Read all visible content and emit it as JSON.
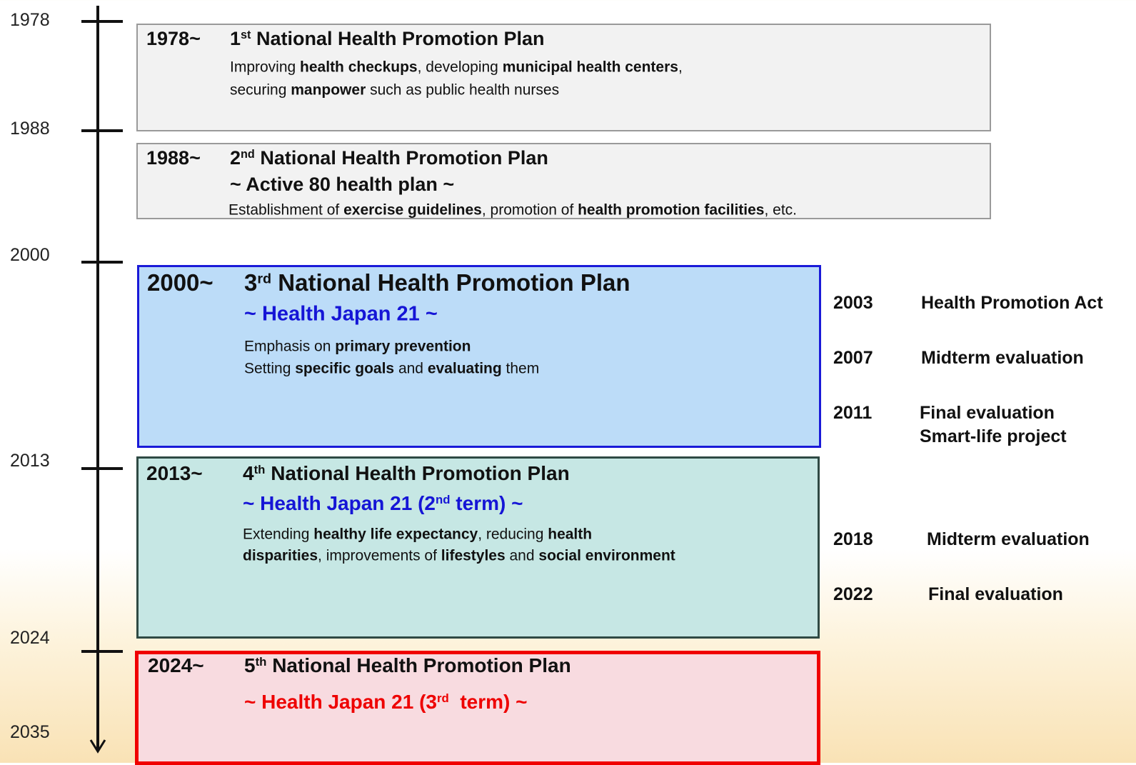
{
  "timeline": {
    "years": [
      "1978",
      "1988",
      "2000",
      "2013",
      "2024",
      "2035"
    ]
  },
  "plans": [
    {
      "start": "1978~",
      "title": [
        {
          "text": "1"
        },
        {
          "text": "st",
          "sup": true
        },
        {
          "text": " National Health Promotion Plan"
        }
      ],
      "description": [
        [
          {
            "text": "Improving "
          },
          {
            "text": "health checkups",
            "bold": true
          },
          {
            "text": ", developing "
          },
          {
            "text": "municipal health centers",
            "bold": true
          },
          {
            "text": ","
          }
        ],
        [
          {
            "text": "securing "
          },
          {
            "text": "manpower",
            "bold": true
          },
          {
            "text": " such as public health nurses"
          }
        ]
      ]
    },
    {
      "start": "1988~",
      "title": [
        {
          "text": "2"
        },
        {
          "text": "nd",
          "sup": true
        },
        {
          "text": " National Health Promotion Plan"
        }
      ],
      "subtitle": [
        {
          "text": "~ Active 80 health plan ~"
        }
      ],
      "description": [
        [
          {
            "text": "Establishment of "
          },
          {
            "text": "exercise guidelines",
            "bold": true
          },
          {
            "text": ", promotion of "
          },
          {
            "text": "health promotion facilities",
            "bold": true
          },
          {
            "text": ", etc."
          }
        ]
      ]
    },
    {
      "start": "2000~",
      "title": [
        {
          "text": "3"
        },
        {
          "text": "rd",
          "sup": true
        },
        {
          "text": " National Health Promotion Plan"
        }
      ],
      "subtitle": [
        {
          "text": "~ Health Japan 21 ~"
        }
      ],
      "description": [
        [
          {
            "text": "Emphasis on "
          },
          {
            "text": "primary prevention",
            "bold": true
          }
        ],
        [
          {
            "text": "Setting "
          },
          {
            "text": "specific goals",
            "bold": true
          },
          {
            "text": " and "
          },
          {
            "text": "evaluating",
            "bold": true
          },
          {
            "text": " them"
          }
        ]
      ]
    },
    {
      "start": "2013~",
      "title": [
        {
          "text": "4"
        },
        {
          "text": "th",
          "sup": true
        },
        {
          "text": " National Health Promotion Plan"
        }
      ],
      "subtitle": [
        {
          "text": "~ Health Japan 21 (2"
        },
        {
          "text": "nd",
          "sup": true
        },
        {
          "text": " term) ~"
        }
      ],
      "description": [
        [
          {
            "text": "Extending "
          },
          {
            "text": "healthy life expectancy",
            "bold": true
          },
          {
            "text": ", reducing "
          },
          {
            "text": "health",
            "bold": true
          }
        ],
        [
          {
            "text": "disparities",
            "bold": true
          },
          {
            "text": ", improvements of "
          },
          {
            "text": "lifestyles",
            "bold": true
          },
          {
            "text": " and "
          },
          {
            "text": "social environment",
            "bold": true
          }
        ]
      ]
    },
    {
      "start": "2024~",
      "title": [
        {
          "text": "5"
        },
        {
          "text": "th",
          "sup": true
        },
        {
          "text": " National Health Promotion Plan"
        }
      ],
      "subtitle": [
        {
          "text": "~ Health Japan 21 (3"
        },
        {
          "text": "rd",
          "sup": true
        },
        {
          "text": "  term) ~"
        }
      ]
    }
  ],
  "events": [
    {
      "year": "2003",
      "lines": [
        "Health Promotion Act"
      ]
    },
    {
      "year": "2007",
      "lines": [
        "Midterm evaluation"
      ]
    },
    {
      "year": "2011",
      "lines": [
        "Final evaluation",
        "Smart-life project"
      ]
    },
    {
      "year": "2018",
      "lines": [
        "Midterm evaluation"
      ]
    },
    {
      "year": "2022",
      "lines": [
        "Final evaluation"
      ]
    }
  ]
}
